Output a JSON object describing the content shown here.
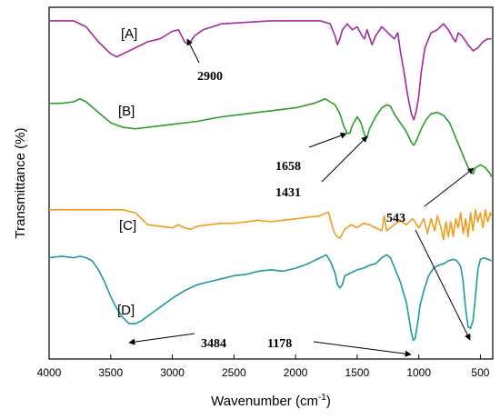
{
  "chart_data": {
    "type": "line",
    "xlabel": "Wavenumber (cm",
    "xlabel_sup": "-1",
    "xlabel_end": ")",
    "ylabel": "Transmittance (%)",
    "xlim": [
      4000,
      400
    ],
    "x_reversed": true,
    "yticks_shown": false,
    "grid": false,
    "xticks": [
      4000,
      3500,
      3000,
      2500,
      2000,
      1500,
      1000,
      500
    ],
    "series": [
      {
        "name": "[A]",
        "color": "#a6279e",
        "points": [
          [
            4000,
            97
          ],
          [
            3800,
            97
          ],
          [
            3700,
            95
          ],
          [
            3600,
            90
          ],
          [
            3500,
            86
          ],
          [
            3450,
            85
          ],
          [
            3400,
            86
          ],
          [
            3300,
            88
          ],
          [
            3200,
            90
          ],
          [
            3100,
            91
          ],
          [
            3000,
            93.5
          ],
          [
            2950,
            94
          ],
          [
            2900,
            90
          ],
          [
            2870,
            89
          ],
          [
            2820,
            92
          ],
          [
            2750,
            94
          ],
          [
            2600,
            96
          ],
          [
            2400,
            96.5
          ],
          [
            2200,
            97
          ],
          [
            2000,
            97
          ],
          [
            1800,
            97
          ],
          [
            1720,
            96
          ],
          [
            1680,
            92
          ],
          [
            1660,
            89
          ],
          [
            1640,
            91
          ],
          [
            1620,
            94
          ],
          [
            1580,
            96
          ],
          [
            1540,
            94
          ],
          [
            1500,
            95
          ],
          [
            1460,
            92
          ],
          [
            1440,
            91
          ],
          [
            1420,
            94
          ],
          [
            1380,
            89
          ],
          [
            1350,
            92
          ],
          [
            1300,
            95
          ],
          [
            1250,
            93
          ],
          [
            1200,
            91
          ],
          [
            1170,
            93
          ],
          [
            1150,
            87
          ],
          [
            1120,
            80
          ],
          [
            1090,
            72
          ],
          [
            1060,
            66
          ],
          [
            1040,
            64
          ],
          [
            1020,
            67
          ],
          [
            1000,
            72
          ],
          [
            980,
            80
          ],
          [
            950,
            88
          ],
          [
            900,
            93
          ],
          [
            850,
            94
          ],
          [
            800,
            96
          ],
          [
            760,
            94
          ],
          [
            720,
            91
          ],
          [
            700,
            90
          ],
          [
            680,
            93
          ],
          [
            650,
            92
          ],
          [
            600,
            89
          ],
          [
            560,
            87
          ],
          [
            520,
            88
          ],
          [
            480,
            90
          ],
          [
            440,
            91
          ],
          [
            410,
            91
          ]
        ]
      },
      {
        "name": "[B]",
        "color": "#2a9e2a",
        "points": [
          [
            4000,
            69.5
          ],
          [
            3900,
            69.5
          ],
          [
            3800,
            70
          ],
          [
            3750,
            71
          ],
          [
            3700,
            70
          ],
          [
            3600,
            66.5
          ],
          [
            3500,
            63
          ],
          [
            3400,
            61.5
          ],
          [
            3300,
            61
          ],
          [
            3200,
            61.5
          ],
          [
            3000,
            62.5
          ],
          [
            2800,
            63.5
          ],
          [
            2600,
            65
          ],
          [
            2400,
            66
          ],
          [
            2200,
            67
          ],
          [
            2000,
            68
          ],
          [
            1850,
            69.5
          ],
          [
            1760,
            71
          ],
          [
            1720,
            70
          ],
          [
            1680,
            69
          ],
          [
            1640,
            66
          ],
          [
            1610,
            62
          ],
          [
            1580,
            59.5
          ],
          [
            1560,
            59.5
          ],
          [
            1540,
            62
          ],
          [
            1500,
            65
          ],
          [
            1470,
            63
          ],
          [
            1440,
            59
          ],
          [
            1420,
            58
          ],
          [
            1400,
            61
          ],
          [
            1350,
            65
          ],
          [
            1300,
            68
          ],
          [
            1260,
            69
          ],
          [
            1230,
            68.5
          ],
          [
            1200,
            66
          ],
          [
            1150,
            63
          ],
          [
            1100,
            60
          ],
          [
            1060,
            56.5
          ],
          [
            1040,
            55.5
          ],
          [
            1020,
            57
          ],
          [
            980,
            61
          ],
          [
            940,
            64
          ],
          [
            900,
            66
          ],
          [
            850,
            66.5
          ],
          [
            800,
            65.5
          ],
          [
            750,
            63
          ],
          [
            700,
            58
          ],
          [
            660,
            54
          ],
          [
            620,
            50
          ],
          [
            580,
            46.5
          ],
          [
            560,
            46
          ],
          [
            540,
            48
          ],
          [
            500,
            49
          ],
          [
            460,
            48
          ],
          [
            420,
            46
          ],
          [
            410,
            45
          ]
        ]
      },
      {
        "name": "[C]",
        "color": "#f39b1a",
        "points": [
          [
            4000,
            34
          ],
          [
            3800,
            34
          ],
          [
            3500,
            34
          ],
          [
            3400,
            34
          ],
          [
            3300,
            33
          ],
          [
            3250,
            31
          ],
          [
            3200,
            29
          ],
          [
            3100,
            28.5
          ],
          [
            3000,
            28
          ],
          [
            2950,
            29
          ],
          [
            2900,
            28
          ],
          [
            2850,
            27.5
          ],
          [
            2800,
            28.5
          ],
          [
            2700,
            29
          ],
          [
            2600,
            29.5
          ],
          [
            2500,
            29.5
          ],
          [
            2400,
            30
          ],
          [
            2300,
            30.5
          ],
          [
            2200,
            30
          ],
          [
            2100,
            30.5
          ],
          [
            2000,
            31
          ],
          [
            1900,
            31.5
          ],
          [
            1800,
            32
          ],
          [
            1750,
            33
          ],
          [
            1730,
            33
          ],
          [
            1700,
            28
          ],
          [
            1680,
            26
          ],
          [
            1660,
            25
          ],
          [
            1640,
            24.5
          ],
          [
            1620,
            26
          ],
          [
            1600,
            27.5
          ],
          [
            1550,
            29
          ],
          [
            1500,
            28
          ],
          [
            1450,
            29.5
          ],
          [
            1400,
            29
          ],
          [
            1350,
            28
          ],
          [
            1300,
            27
          ],
          [
            1280,
            32
          ],
          [
            1260,
            27
          ],
          [
            1200,
            29
          ],
          [
            1150,
            30.5
          ],
          [
            1100,
            29
          ],
          [
            1050,
            31
          ],
          [
            1000,
            28
          ],
          [
            960,
            31
          ],
          [
            930,
            26
          ],
          [
            900,
            31
          ],
          [
            870,
            27
          ],
          [
            850,
            32
          ],
          [
            820,
            28
          ],
          [
            800,
            24
          ],
          [
            780,
            30
          ],
          [
            760,
            25
          ],
          [
            740,
            30
          ],
          [
            720,
            25
          ],
          [
            700,
            31
          ],
          [
            680,
            28
          ],
          [
            660,
            33
          ],
          [
            640,
            26
          ],
          [
            620,
            31
          ],
          [
            600,
            25
          ],
          [
            580,
            33
          ],
          [
            560,
            27
          ],
          [
            540,
            34
          ],
          [
            520,
            30
          ],
          [
            500,
            33
          ],
          [
            480,
            28
          ],
          [
            460,
            34
          ],
          [
            440,
            30
          ],
          [
            420,
            33
          ],
          [
            410,
            32
          ]
        ]
      },
      {
        "name": "[D]",
        "color": "#1b9aa0",
        "points": [
          [
            4000,
            18
          ],
          [
            3900,
            18.5
          ],
          [
            3800,
            18
          ],
          [
            3750,
            18.5
          ],
          [
            3700,
            18
          ],
          [
            3650,
            17
          ],
          [
            3600,
            14
          ],
          [
            3550,
            10
          ],
          [
            3500,
            5
          ],
          [
            3450,
            1
          ],
          [
            3400,
            -2
          ],
          [
            3350,
            -4
          ],
          [
            3300,
            -4
          ],
          [
            3250,
            -3
          ],
          [
            3200,
            -1.5
          ],
          [
            3100,
            1.5
          ],
          [
            3000,
            4.5
          ],
          [
            2900,
            7
          ],
          [
            2800,
            9
          ],
          [
            2700,
            10
          ],
          [
            2600,
            11
          ],
          [
            2500,
            12
          ],
          [
            2400,
            12.5
          ],
          [
            2300,
            13.5
          ],
          [
            2200,
            14
          ],
          [
            2100,
            13.5
          ],
          [
            2000,
            14.5
          ],
          [
            1900,
            16
          ],
          [
            1800,
            18
          ],
          [
            1750,
            19
          ],
          [
            1720,
            17
          ],
          [
            1680,
            13
          ],
          [
            1660,
            9
          ],
          [
            1640,
            8
          ],
          [
            1620,
            9
          ],
          [
            1600,
            12
          ],
          [
            1550,
            13
          ],
          [
            1500,
            14
          ],
          [
            1450,
            14.5
          ],
          [
            1400,
            15.5
          ],
          [
            1350,
            16
          ],
          [
            1300,
            18
          ],
          [
            1260,
            19
          ],
          [
            1230,
            18
          ],
          [
            1200,
            15
          ],
          [
            1150,
            10
          ],
          [
            1100,
            3
          ],
          [
            1080,
            -2
          ],
          [
            1060,
            -7
          ],
          [
            1045,
            -9.5
          ],
          [
            1030,
            -9
          ],
          [
            1010,
            -4
          ],
          [
            990,
            2
          ],
          [
            960,
            7
          ],
          [
            920,
            12
          ],
          [
            880,
            14.5
          ],
          [
            840,
            15.5
          ],
          [
            800,
            16
          ],
          [
            760,
            17
          ],
          [
            720,
            17.5
          ],
          [
            690,
            17
          ],
          [
            660,
            15
          ],
          [
            640,
            10
          ],
          [
            620,
            1
          ],
          [
            600,
            -5
          ],
          [
            580,
            -5.5
          ],
          [
            560,
            -3
          ],
          [
            540,
            5
          ],
          [
            520,
            14
          ],
          [
            500,
            17.5
          ],
          [
            470,
            18
          ],
          [
            440,
            17.5
          ],
          [
            410,
            17
          ]
        ]
      }
    ],
    "annotations": [
      {
        "text": "2900"
      },
      {
        "text": "1658"
      },
      {
        "text": "1431"
      },
      {
        "text": "543"
      },
      {
        "text": "3484"
      },
      {
        "text": "1178"
      }
    ]
  }
}
